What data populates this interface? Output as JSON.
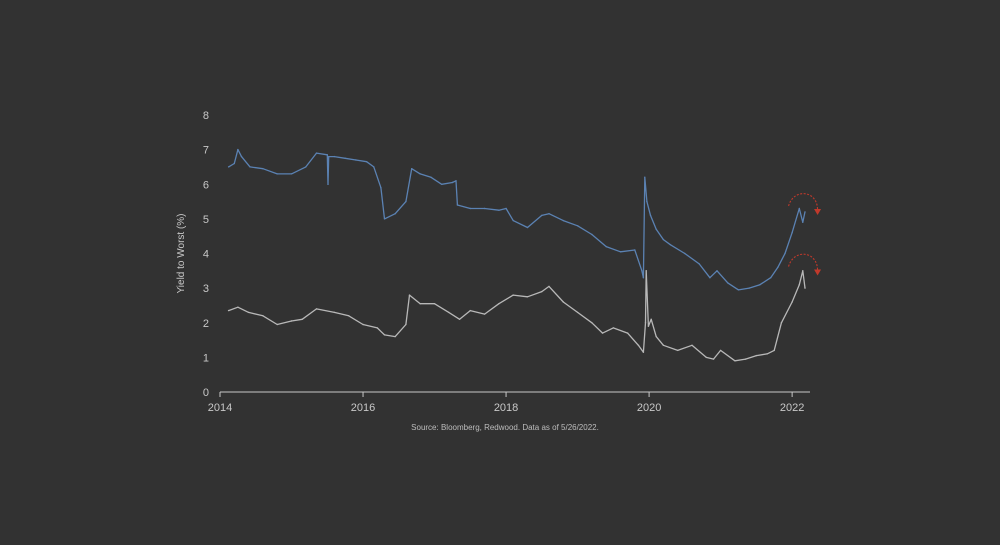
{
  "chart_data": {
    "type": "line",
    "title": "",
    "ylabel": "Yield to Worst (%)",
    "xlabel": "",
    "xlim": [
      2014.0,
      2022.25
    ],
    "ylim": [
      0,
      8
    ],
    "y_ticks": [
      "0",
      "1",
      "2",
      "3",
      "4",
      "5",
      "6",
      "7",
      "8"
    ],
    "x_ticks": [
      "2014",
      "2016",
      "2018",
      "2020",
      "2022"
    ],
    "grid": false,
    "legend": "none",
    "source": "Source: Bloomberg, Redwood. Data as of 5/26/2022.",
    "series": [
      {
        "color": "#5b82b3",
        "x": [
          2014.12,
          2014.2,
          2014.25,
          2014.3,
          2014.42,
          2014.6,
          2014.8,
          2015.0,
          2015.2,
          2015.35,
          2015.5,
          2015.51,
          2015.52,
          2015.6,
          2015.75,
          2015.9,
          2016.05,
          2016.15,
          2016.25,
          2016.3,
          2016.45,
          2016.6,
          2016.68,
          2016.8,
          2016.95,
          2017.1,
          2017.25,
          2017.3,
          2017.32,
          2017.5,
          2017.7,
          2017.9,
          2018.0,
          2018.1,
          2018.3,
          2018.5,
          2018.6,
          2018.8,
          2019.0,
          2019.2,
          2019.4,
          2019.6,
          2019.8,
          2019.9,
          2019.92,
          2019.94,
          2019.97,
          2020.02,
          2020.1,
          2020.2,
          2020.3,
          2020.5,
          2020.7,
          2020.85,
          2020.95,
          2021.1,
          2021.25,
          2021.4,
          2021.55,
          2021.7,
          2021.8,
          2021.9,
          2022.0,
          2022.1,
          2022.15,
          2022.18
        ],
        "values": [
          6.5,
          6.6,
          7.0,
          6.8,
          6.5,
          6.45,
          6.3,
          6.3,
          6.5,
          6.9,
          6.85,
          6.0,
          6.8,
          6.8,
          6.75,
          6.7,
          6.65,
          6.5,
          5.9,
          5.0,
          5.15,
          5.5,
          6.45,
          6.3,
          6.2,
          6.0,
          6.05,
          6.1,
          5.4,
          5.3,
          5.3,
          5.25,
          5.3,
          4.95,
          4.75,
          5.1,
          5.15,
          4.95,
          4.8,
          4.55,
          4.2,
          4.05,
          4.1,
          3.5,
          3.3,
          6.2,
          5.5,
          5.1,
          4.7,
          4.4,
          4.25,
          4.0,
          3.7,
          3.3,
          3.5,
          3.15,
          2.95,
          3.0,
          3.1,
          3.3,
          3.6,
          4.0,
          4.6,
          5.3,
          4.9,
          5.2
        ]
      },
      {
        "color": "#b8b8b8",
        "x": [
          2014.12,
          2014.25,
          2014.4,
          2014.6,
          2014.8,
          2015.0,
          2015.15,
          2015.35,
          2015.6,
          2015.8,
          2016.0,
          2016.2,
          2016.3,
          2016.45,
          2016.6,
          2016.65,
          2016.8,
          2017.0,
          2017.2,
          2017.35,
          2017.5,
          2017.7,
          2017.9,
          2018.1,
          2018.3,
          2018.5,
          2018.6,
          2018.8,
          2019.0,
          2019.2,
          2019.35,
          2019.5,
          2019.7,
          2019.85,
          2019.92,
          2019.95,
          2019.96,
          2019.99,
          2020.03,
          2020.1,
          2020.2,
          2020.4,
          2020.6,
          2020.8,
          2020.9,
          2021.0,
          2021.2,
          2021.35,
          2021.5,
          2021.65,
          2021.75,
          2021.85,
          2022.0,
          2022.1,
          2022.15,
          2022.18
        ],
        "values": [
          2.35,
          2.45,
          2.3,
          2.2,
          1.95,
          2.05,
          2.1,
          2.4,
          2.3,
          2.2,
          1.95,
          1.85,
          1.65,
          1.6,
          1.95,
          2.8,
          2.55,
          2.55,
          2.3,
          2.1,
          2.35,
          2.25,
          2.55,
          2.8,
          2.75,
          2.9,
          3.05,
          2.6,
          2.3,
          2.0,
          1.7,
          1.85,
          1.7,
          1.35,
          1.15,
          2.0,
          3.5,
          1.9,
          2.1,
          1.6,
          1.35,
          1.2,
          1.35,
          1.0,
          0.95,
          1.2,
          0.9,
          0.95,
          1.05,
          1.1,
          1.2,
          2.0,
          2.6,
          3.1,
          3.5,
          3.0
        ]
      }
    ],
    "annotations": [
      {
        "type": "curved-arrow",
        "color": "#c0392b",
        "near_series": 0,
        "x": 2022.16,
        "y": 5.2
      },
      {
        "type": "curved-arrow",
        "color": "#c0392b",
        "near_series": 1,
        "x": 2022.16,
        "y": 3.45
      }
    ]
  }
}
